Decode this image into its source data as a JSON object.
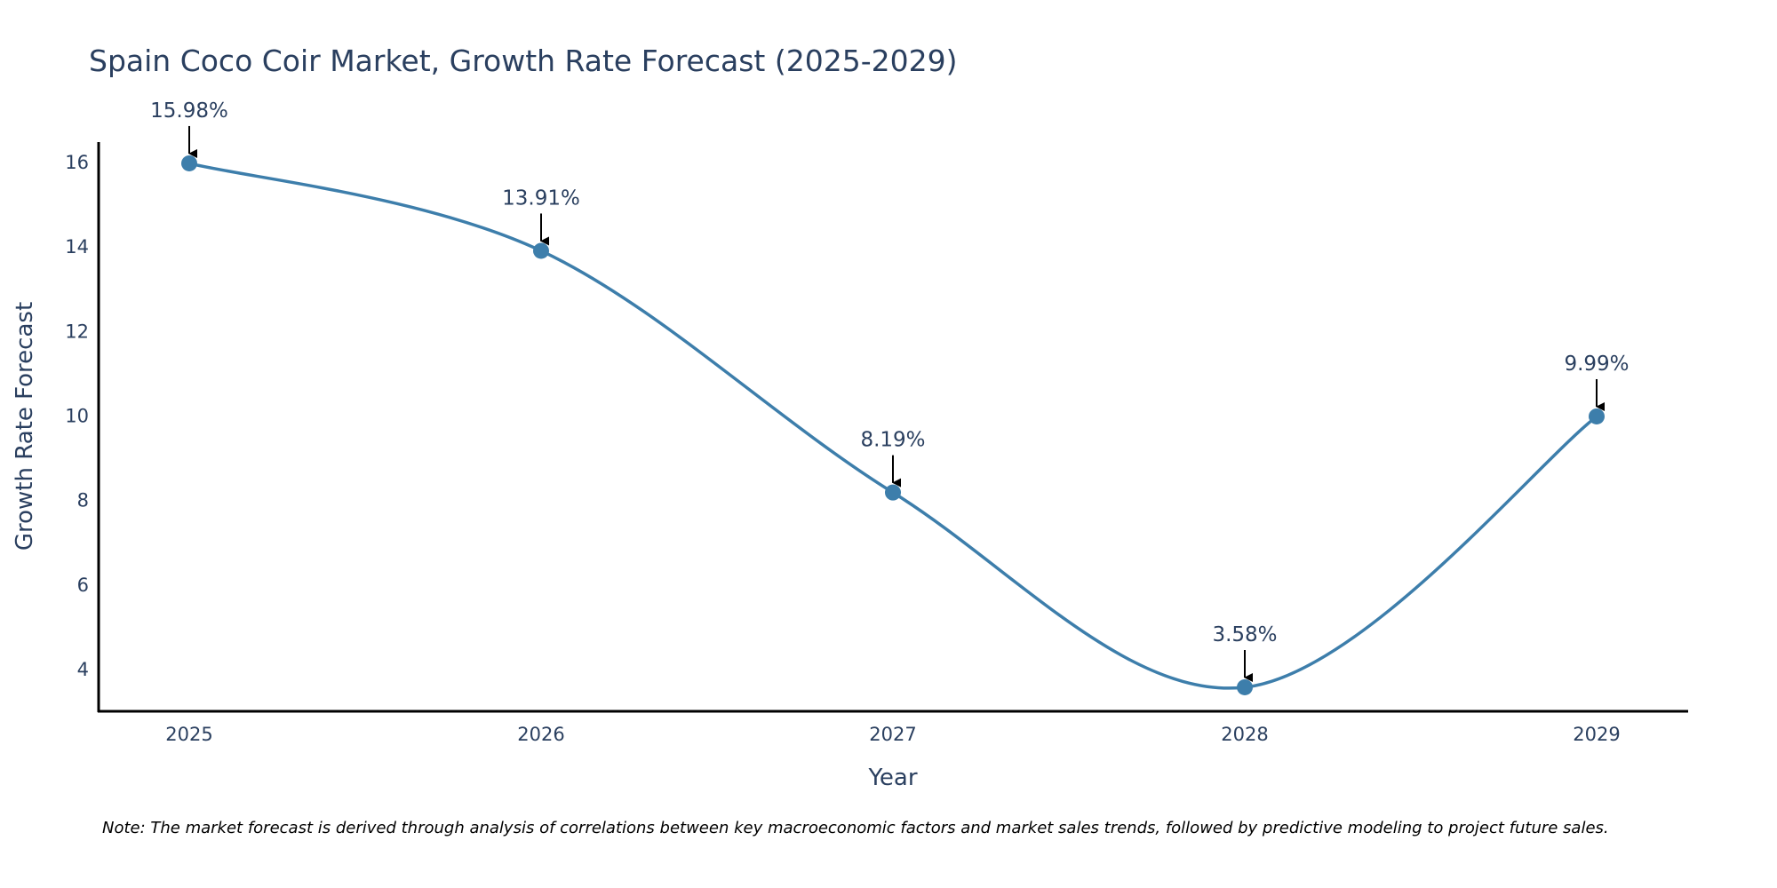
{
  "chart_data": {
    "type": "line",
    "title": "Spain Coco Coir Market, Growth Rate Forecast (2025-2029)",
    "xlabel": "Year",
    "ylabel": "Growth Rate Forecast",
    "categories": [
      "2025",
      "2026",
      "2027",
      "2028",
      "2029"
    ],
    "series": [
      {
        "name": "Growth Rate Forecast",
        "values": [
          15.98,
          13.91,
          8.19,
          3.58,
          9.99
        ],
        "labels": [
          "15.98%",
          "13.91%",
          "8.19%",
          "3.58%",
          "9.99%"
        ]
      }
    ],
    "yticks": [
      4,
      6,
      8,
      10,
      12,
      14,
      16
    ],
    "ylim": [
      3.0,
      16.5
    ],
    "line_shape": "spline",
    "grid": false,
    "colors": {
      "line": "#3d7eab",
      "marker": "#3d7eab",
      "arrow": "#000000",
      "axis": "#000000"
    },
    "note": "Note: The market forecast is derived through analysis of correlations between key macroeconomic factors and market sales trends, followed by predictive modeling to project future sales."
  }
}
